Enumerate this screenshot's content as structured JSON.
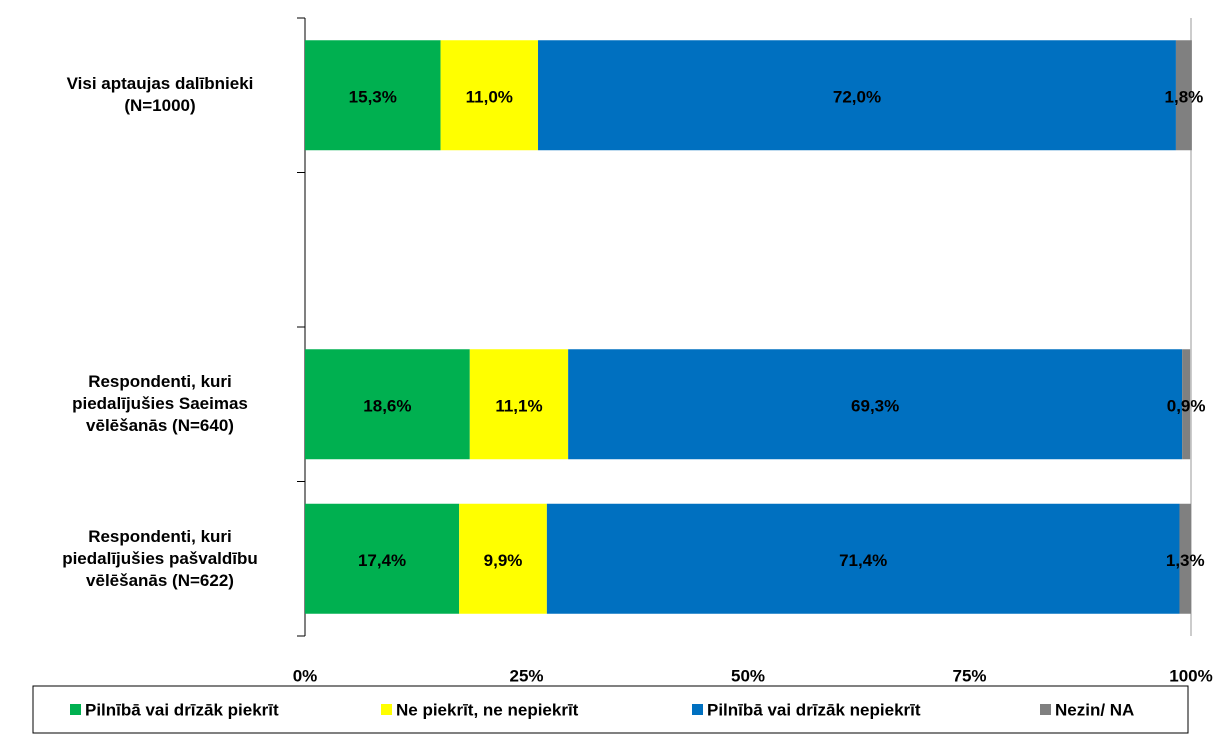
{
  "chart_data": {
    "type": "stacked-bar-horizontal",
    "categories": [
      "Visi aptaujas dalībnieki (N=1000)",
      null,
      "Respondenti, kuri piedalījušies Saeimas vēlēšanās (N=640)",
      "Respondenti, kuri piedalījušies pašvaldību vēlēšanās (N=622)"
    ],
    "series": [
      {
        "name": "Pilnībā vai drīzāk piekrīt",
        "color": "#00b050",
        "values": [
          15.3,
          null,
          18.6,
          17.4
        ],
        "value_labels": [
          "15,3%",
          null,
          "18,6%",
          "17,4%"
        ]
      },
      {
        "name": "Ne piekrīt, ne nepiekrīt",
        "color": "#ffff00",
        "values": [
          11.0,
          null,
          11.1,
          9.9
        ],
        "value_labels": [
          "11,0%",
          null,
          "11,1%",
          "9,9%"
        ]
      },
      {
        "name": "Pilnībā vai drīzāk nepiekrīt",
        "color": "#0070c0",
        "values": [
          72.0,
          null,
          69.3,
          71.4
        ],
        "value_labels": [
          "72,0%",
          null,
          "69,3%",
          "71,4%"
        ]
      },
      {
        "name": "Nezin/ NA",
        "color": "#808080",
        "values": [
          1.8,
          null,
          0.9,
          1.3
        ],
        "value_labels": [
          "1,8%",
          null,
          "0,9%",
          "1,3%"
        ]
      }
    ],
    "xlim": [
      0,
      100
    ],
    "xticks": [
      {
        "value": 0,
        "label": "0%"
      },
      {
        "value": 25,
        "label": "25%"
      },
      {
        "value": 50,
        "label": "50%"
      },
      {
        "value": 75,
        "label": "75%"
      },
      {
        "value": 100,
        "label": "100%"
      }
    ],
    "legend": "bottom"
  }
}
